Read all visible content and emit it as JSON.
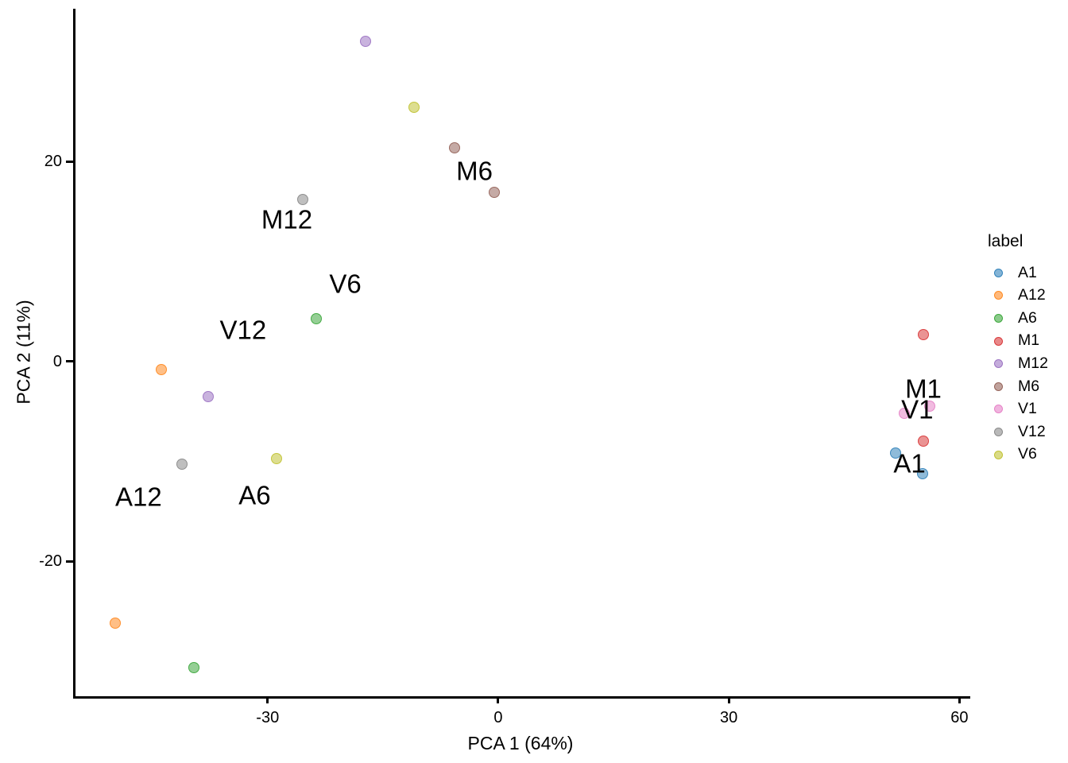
{
  "figure": {
    "background": "#ffffff",
    "axis_color": "#000000",
    "text_color": "#000000"
  },
  "chart_data": {
    "type": "scatter",
    "title": "",
    "xlabel": "PCA 1 (64%)",
    "ylabel": "PCA 2 (11%)",
    "xlim": [
      -55.3,
      61.1
    ],
    "ylim": [
      -33.5,
      35.3
    ],
    "xticks": [
      -30,
      0,
      30,
      60
    ],
    "yticks": [
      -20,
      0,
      20
    ],
    "grid": false,
    "legend_title": "label",
    "legend_position": "right",
    "point_alpha": 0.5,
    "series": [
      {
        "name": "A1",
        "color": "#1f77b4",
        "points": [
          [
            51.4,
            -9.2
          ],
          [
            54.9,
            -11.2
          ]
        ]
      },
      {
        "name": "A12",
        "color": "#ff7f0e",
        "points": [
          [
            -44.1,
            -0.8
          ],
          [
            -50.1,
            -26.2
          ]
        ]
      },
      {
        "name": "A6",
        "color": "#2ca02c",
        "points": [
          [
            -24.0,
            4.3
          ],
          [
            -39.9,
            -30.6
          ]
        ]
      },
      {
        "name": "M1",
        "color": "#d62728",
        "points": [
          [
            55.0,
            2.7
          ],
          [
            55.0,
            -8.0
          ]
        ]
      },
      {
        "name": "M12",
        "color": "#9467bd",
        "points": [
          [
            -17.6,
            32.0
          ],
          [
            -38.0,
            -3.5
          ]
        ]
      },
      {
        "name": "M6",
        "color": "#8c564b",
        "points": [
          [
            -6.0,
            21.4
          ],
          [
            -0.8,
            16.9
          ]
        ]
      },
      {
        "name": "V1",
        "color": "#e377c2",
        "points": [
          [
            55.8,
            -4.5
          ],
          [
            52.5,
            -5.2
          ]
        ]
      },
      {
        "name": "V12",
        "color": "#7f7f7f",
        "points": [
          [
            -25.7,
            16.2
          ],
          [
            -41.4,
            -10.3
          ]
        ]
      },
      {
        "name": "V6",
        "color": "#bcbd22",
        "points": [
          [
            -11.3,
            25.4
          ],
          [
            -29.1,
            -9.7
          ]
        ]
      }
    ],
    "annotations": [
      {
        "text": "M6",
        "x": -3.4,
        "y": 19.1
      },
      {
        "text": "M12",
        "x": -27.8,
        "y": 14.2
      },
      {
        "text": "V6",
        "x": -20.2,
        "y": 7.8
      },
      {
        "text": "V12",
        "x": -33.5,
        "y": 3.2
      },
      {
        "text": "A12",
        "x": -47.1,
        "y": -13.5
      },
      {
        "text": "A6",
        "x": -32.0,
        "y": -13.4
      },
      {
        "text": "M1",
        "x": 55.0,
        "y": -2.7
      },
      {
        "text": "V1",
        "x": 54.2,
        "y": -4.8
      },
      {
        "text": "A1",
        "x": 53.2,
        "y": -10.2
      }
    ]
  }
}
